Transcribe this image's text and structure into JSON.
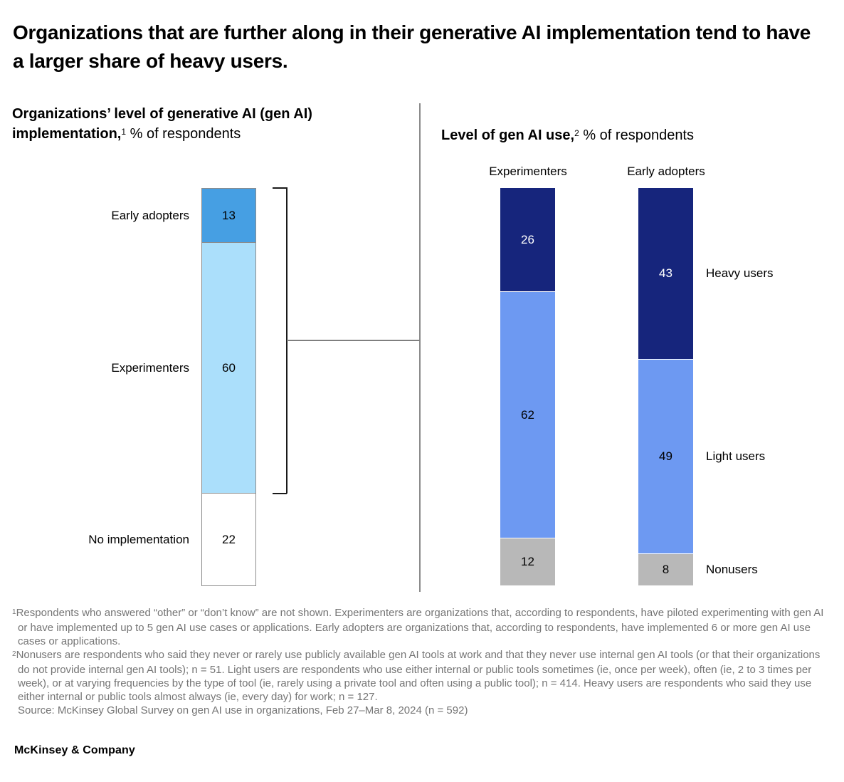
{
  "page": {
    "title": "Organizations that are further along in their generative AI implementation tend to have a larger share of heavy users.",
    "footer": "McKinsey & Company",
    "background": "#FFFFFF"
  },
  "left_chart": {
    "title_bold": "Organizations’ level of generative AI (gen AI) implementation,",
    "title_sup": "1",
    "title_regular": " % of respondents"
  },
  "right_chart": {
    "title_bold": "Level of gen AI use,",
    "title_sup": "2",
    "title_regular": " % of respondents"
  },
  "chart_data": [
    {
      "type": "bar",
      "subtype": "stacked_single_column",
      "title": "Organizations’ level of generative AI (gen AI) implementation, % of respondents",
      "categories": [
        "Early adopters",
        "Experimenters",
        "No implementation"
      ],
      "values": [
        13,
        60,
        22
      ],
      "colors": [
        "#469FE3",
        "#ABDFFB",
        "#FFFFFF"
      ],
      "value_colors": [
        "#000000",
        "#000000",
        "#000000"
      ]
    },
    {
      "type": "bar",
      "subtype": "stacked_columns",
      "title": "Level of gen AI use, % of respondents",
      "categories": [
        "Experimenters",
        "Early adopters"
      ],
      "series": [
        {
          "name": "Heavy users",
          "values": [
            26,
            43
          ],
          "color": "#16257C",
          "value_color": "#FFFFFF"
        },
        {
          "name": "Light users",
          "values": [
            62,
            49
          ],
          "color": "#6D99F2",
          "value_color": "#000000"
        },
        {
          "name": "Nonusers",
          "values": [
            12,
            8
          ],
          "color": "#B8B8B8",
          "value_color": "#000000"
        }
      ],
      "ylim": [
        0,
        100
      ],
      "legend_position": "right"
    }
  ],
  "footnotes": [
    {
      "sup": "1",
      "text": "Respondents who answered “other” or “don’t know” are not shown. Experimenters are organizations that, according to respondents, have piloted experimenting with gen AI or have implemented up to 5 gen AI use cases or applications. Early adopters are organizations that, according to respondents, have implemented 6 or more gen AI use cases or applications."
    },
    {
      "sup": "2",
      "text": "Nonusers are respondents who said they never or rarely use publicly available gen AI tools at work and that they never use internal gen AI tools (or that their organizations do not provide internal gen AI tools); n = 51. Light users are respondents who use either internal or public tools sometimes (ie, once per week), often (ie, 2 to 3 times per week), or at varying frequencies by the type of tool (ie, rarely using a private tool and often using a public tool); n = 414. Heavy users are respondents who said they use either internal or public tools almost always (ie, every day) for work; n = 127."
    },
    {
      "sup": "",
      "text": "Source: McKinsey Global Survey on gen AI use in organizations, Feb 27–Mar 8, 2024 (n = 592)"
    }
  ],
  "colors": {
    "sky_blue": "#469FE3",
    "light_blue": "#ABDFFB",
    "navy": "#16257C",
    "cornflower": "#6D99F2",
    "gray_segment": "#B8B8B8",
    "bar_border": "#8C8C8C",
    "divider": "#8A8A8A",
    "bracket": "#1A1A1A",
    "footnote_text": "#757575"
  }
}
